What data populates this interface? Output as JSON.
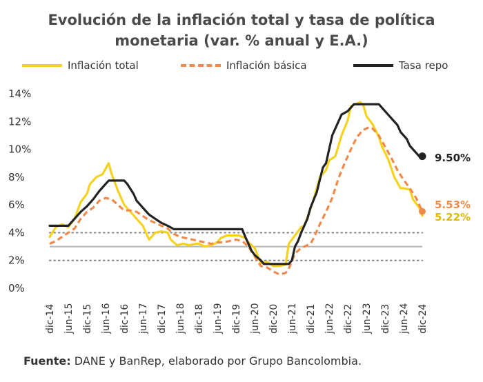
{
  "title_line1": "Evolución de la inflación total y tasa de política",
  "title_line2": "monetaria (var. % anual y E.A.)",
  "legend": [
    {
      "label": "Inflación total",
      "color": "#f5d21f",
      "style": "solid"
    },
    {
      "label": "Inflación básica",
      "color": "#f08a4b",
      "style": "dashed"
    },
    {
      "label": "Tasa repo",
      "color": "#222222",
      "style": "solid"
    }
  ],
  "source_label": "Fuente:",
  "source_text": "DANE y BanRep, elaborado por Grupo Bancolombia.",
  "chart_data": {
    "type": "line",
    "title": "Evolución de la inflación total y tasa de política monetaria (var. % anual y E.A.)",
    "xlabel": "",
    "ylabel": "",
    "x_start": "dic-14",
    "x_end": "dic-24",
    "n_months": 121,
    "ylim": [
      0,
      14
    ],
    "ytick_labels": [
      "0%",
      "2%",
      "4%",
      "6%",
      "8%",
      "10%",
      "12%",
      "14%"
    ],
    "xtick_labels": [
      "dic-14",
      "jun-15",
      "dic-15",
      "jun-16",
      "dic-16",
      "jun-17",
      "dic-17",
      "jun-18",
      "dic-18",
      "jun-19",
      "dic-19",
      "jun-20",
      "dic-20",
      "jun-21",
      "dic-21",
      "jun-22",
      "dic-22",
      "jun-23",
      "dic-23",
      "jun-24",
      "dic-24"
    ],
    "reference_lines": [
      {
        "value": 3,
        "style": "solid",
        "color": "#b5b5b5"
      },
      {
        "value": 2,
        "style": "dotted",
        "color": "#8a8a8a"
      },
      {
        "value": 4,
        "style": "dotted",
        "color": "#8a8a8a"
      }
    ],
    "series": [
      {
        "name": "Inflación total",
        "color": "#f5d21f",
        "dash": false,
        "end_label": "5.22%",
        "anchors": [
          [
            0,
            3.7
          ],
          [
            2,
            4.4
          ],
          [
            4,
            4.6
          ],
          [
            6,
            4.4
          ],
          [
            8,
            5.0
          ],
          [
            10,
            6.2
          ],
          [
            12,
            6.8
          ],
          [
            13,
            7.5
          ],
          [
            15,
            8.0
          ],
          [
            17,
            8.2
          ],
          [
            19,
            9.0
          ],
          [
            20,
            8.2
          ],
          [
            22,
            7.0
          ],
          [
            24,
            6.0
          ],
          [
            26,
            5.5
          ],
          [
            28,
            5.0
          ],
          [
            30,
            4.5
          ],
          [
            32,
            3.5
          ],
          [
            34,
            4.0
          ],
          [
            36,
            4.1
          ],
          [
            38,
            4.0
          ],
          [
            39,
            3.5
          ],
          [
            41,
            3.1
          ],
          [
            43,
            3.2
          ],
          [
            45,
            3.1
          ],
          [
            47,
            3.2
          ],
          [
            48,
            3.2
          ],
          [
            50,
            3.0
          ],
          [
            52,
            3.1
          ],
          [
            54,
            3.3
          ],
          [
            55,
            3.6
          ],
          [
            57,
            3.8
          ],
          [
            59,
            3.8
          ],
          [
            61,
            3.8
          ],
          [
            63,
            3.6
          ],
          [
            64,
            3.3
          ],
          [
            66,
            2.9
          ],
          [
            68,
            1.8
          ],
          [
            70,
            1.9
          ],
          [
            72,
            1.6
          ],
          [
            74,
            1.6
          ],
          [
            76,
            1.7
          ],
          [
            77,
            3.2
          ],
          [
            79,
            3.8
          ],
          [
            81,
            4.4
          ],
          [
            82,
            4.5
          ],
          [
            84,
            5.7
          ],
          [
            85,
            6.4
          ],
          [
            87,
            8.0
          ],
          [
            89,
            8.5
          ],
          [
            90,
            9.2
          ],
          [
            92,
            9.5
          ],
          [
            94,
            11.0
          ],
          [
            96,
            12.1
          ],
          [
            97,
            13.1
          ],
          [
            99,
            13.3
          ],
          [
            100,
            13.4
          ],
          [
            101,
            13.2
          ],
          [
            102,
            12.4
          ],
          [
            104,
            11.8
          ],
          [
            106,
            10.9
          ],
          [
            107,
            10.2
          ],
          [
            109,
            9.3
          ],
          [
            111,
            8.0
          ],
          [
            113,
            7.2
          ],
          [
            114,
            7.2
          ],
          [
            116,
            7.1
          ],
          [
            117,
            6.4
          ],
          [
            119,
            5.8
          ],
          [
            120,
            5.22
          ]
        ]
      },
      {
        "name": "Inflación básica",
        "color": "#f08a4b",
        "dash": true,
        "end_label": "5.53%",
        "anchors": [
          [
            0,
            3.2
          ],
          [
            2,
            3.4
          ],
          [
            4,
            3.7
          ],
          [
            6,
            4.0
          ],
          [
            8,
            4.3
          ],
          [
            10,
            5.0
          ],
          [
            12,
            5.5
          ],
          [
            14,
            5.8
          ],
          [
            16,
            6.3
          ],
          [
            18,
            6.5
          ],
          [
            20,
            6.4
          ],
          [
            22,
            6.0
          ],
          [
            24,
            5.6
          ],
          [
            26,
            5.6
          ],
          [
            28,
            5.5
          ],
          [
            30,
            5.2
          ],
          [
            32,
            4.9
          ],
          [
            34,
            4.7
          ],
          [
            36,
            4.5
          ],
          [
            38,
            4.3
          ],
          [
            40,
            3.9
          ],
          [
            42,
            3.7
          ],
          [
            44,
            3.6
          ],
          [
            46,
            3.5
          ],
          [
            48,
            3.4
          ],
          [
            50,
            3.3
          ],
          [
            52,
            3.2
          ],
          [
            54,
            3.3
          ],
          [
            56,
            3.3
          ],
          [
            58,
            3.4
          ],
          [
            60,
            3.5
          ],
          [
            62,
            3.4
          ],
          [
            64,
            3.0
          ],
          [
            66,
            2.3
          ],
          [
            68,
            1.6
          ],
          [
            70,
            1.5
          ],
          [
            72,
            1.2
          ],
          [
            74,
            1.0
          ],
          [
            76,
            1.1
          ],
          [
            77,
            1.4
          ],
          [
            79,
            2.5
          ],
          [
            81,
            2.9
          ],
          [
            82,
            3.0
          ],
          [
            84,
            3.2
          ],
          [
            85,
            3.6
          ],
          [
            87,
            4.6
          ],
          [
            89,
            5.5
          ],
          [
            91,
            6.5
          ],
          [
            93,
            7.9
          ],
          [
            95,
            9.0
          ],
          [
            97,
            10.0
          ],
          [
            99,
            10.9
          ],
          [
            101,
            11.4
          ],
          [
            103,
            11.6
          ],
          [
            104,
            11.5
          ],
          [
            106,
            11.0
          ],
          [
            108,
            10.2
          ],
          [
            110,
            9.4
          ],
          [
            112,
            8.5
          ],
          [
            114,
            7.8
          ],
          [
            116,
            7.2
          ],
          [
            118,
            6.5
          ],
          [
            120,
            5.53
          ]
        ]
      },
      {
        "name": "Tasa repo",
        "color": "#222222",
        "dash": false,
        "end_label": "9.50%",
        "anchors": [
          [
            0,
            4.5
          ],
          [
            6,
            4.5
          ],
          [
            8,
            5.0
          ],
          [
            10,
            5.5
          ],
          [
            12,
            5.9
          ],
          [
            14,
            6.4
          ],
          [
            16,
            7.0
          ],
          [
            18,
            7.5
          ],
          [
            19,
            7.75
          ],
          [
            24,
            7.75
          ],
          [
            25,
            7.5
          ],
          [
            27,
            6.8
          ],
          [
            28,
            6.3
          ],
          [
            30,
            5.8
          ],
          [
            32,
            5.3
          ],
          [
            34,
            5.0
          ],
          [
            36,
            4.7
          ],
          [
            38,
            4.5
          ],
          [
            40,
            4.25
          ],
          [
            62,
            4.25
          ],
          [
            63,
            3.7
          ],
          [
            64,
            3.2
          ],
          [
            65,
            2.7
          ],
          [
            66,
            2.4
          ],
          [
            68,
            2.0
          ],
          [
            69,
            1.75
          ],
          [
            77,
            1.75
          ],
          [
            78,
            2.0
          ],
          [
            79,
            3.0
          ],
          [
            80,
            3.4
          ],
          [
            81,
            4.0
          ],
          [
            83,
            5.0
          ],
          [
            84,
            5.8
          ],
          [
            86,
            6.9
          ],
          [
            88,
            8.7
          ],
          [
            89,
            9.0
          ],
          [
            90,
            10.0
          ],
          [
            91,
            11.0
          ],
          [
            93,
            12.0
          ],
          [
            94,
            12.5
          ],
          [
            96,
            12.75
          ],
          [
            97,
            13.0
          ],
          [
            98,
            13.25
          ],
          [
            106,
            13.25
          ],
          [
            108,
            12.75
          ],
          [
            110,
            12.25
          ],
          [
            112,
            11.75
          ],
          [
            113,
            11.25
          ],
          [
            115,
            10.75
          ],
          [
            116,
            10.25
          ],
          [
            118,
            9.75
          ],
          [
            119,
            9.5
          ],
          [
            120,
            9.5
          ]
        ]
      }
    ]
  }
}
